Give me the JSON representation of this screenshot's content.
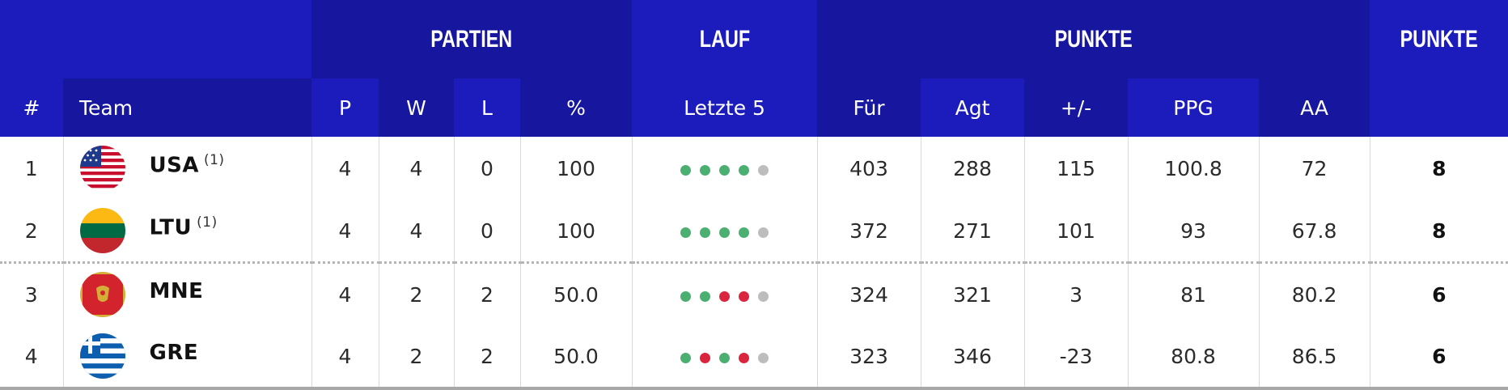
{
  "groups": {
    "partien": "PARTIEN",
    "lauf": "LAUF",
    "punkte_stats": "PUNKTE",
    "punkte": "PUNKTE"
  },
  "headers": {
    "rank": "#",
    "team": "Team",
    "p": "P",
    "w": "W",
    "l": "L",
    "pct": "%",
    "last5": "Letzte 5",
    "fur": "Für",
    "agt": "Agt",
    "diff": "+/-",
    "ppg": "PPG",
    "aa": "AA"
  },
  "colors": {
    "header_blue": "#1c1cbd",
    "header_dark_blue": "#16169f",
    "win_dot": "#4caf72",
    "loss_dot": "#d9253e",
    "pending_dot": "#bdbdbd"
  },
  "rows": [
    {
      "rank": "1",
      "flag_icon": "usa-flag-icon",
      "team": "USA",
      "note": "(1)",
      "p": "4",
      "w": "4",
      "l": "0",
      "pct": "100",
      "form": [
        "win",
        "win",
        "win",
        "win",
        "pending"
      ],
      "fur": "403",
      "agt": "288",
      "diff": "115",
      "ppg": "100.8",
      "aa": "72",
      "pts": "8"
    },
    {
      "rank": "2",
      "flag_icon": "lithuania-flag-icon",
      "team": "LTU",
      "note": "(1)",
      "p": "4",
      "w": "4",
      "l": "0",
      "pct": "100",
      "form": [
        "win",
        "win",
        "win",
        "win",
        "pending"
      ],
      "fur": "372",
      "agt": "271",
      "diff": "101",
      "ppg": "93",
      "aa": "67.8",
      "pts": "8"
    },
    {
      "rank": "3",
      "flag_icon": "montenegro-flag-icon",
      "team": "MNE",
      "p": "4",
      "w": "2",
      "l": "2",
      "pct": "50.0",
      "form": [
        "win",
        "win",
        "loss",
        "loss",
        "pending"
      ],
      "fur": "324",
      "agt": "321",
      "diff": "3",
      "ppg": "81",
      "aa": "80.2",
      "pts": "6"
    },
    {
      "rank": "4",
      "flag_icon": "greece-flag-icon",
      "team": "GRE",
      "p": "4",
      "w": "2",
      "l": "2",
      "pct": "50.0",
      "form": [
        "win",
        "loss",
        "win",
        "loss",
        "pending"
      ],
      "fur": "323",
      "agt": "346",
      "diff": "-23",
      "ppg": "80.8",
      "aa": "86.5",
      "pts": "6"
    }
  ]
}
